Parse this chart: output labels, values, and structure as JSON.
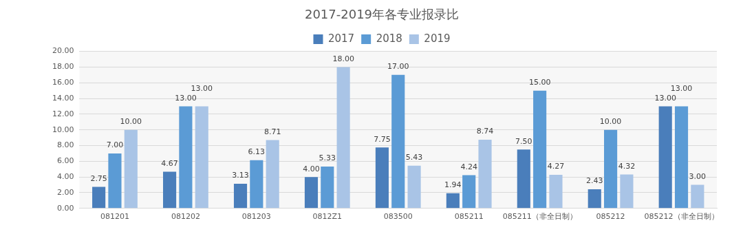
{
  "chart_data": {
    "type": "bar",
    "title": "2017-2019年各专业报录比",
    "categories": [
      "081201",
      "081202",
      "081203",
      "0812Z1",
      "083500",
      "085211",
      "085211（非全日制）",
      "085212",
      "085212（非全日制）"
    ],
    "series": [
      {
        "name": "2017",
        "color": "#4a7ebb",
        "values": [
          2.75,
          4.67,
          3.13,
          4.0,
          7.75,
          1.94,
          7.5,
          2.43,
          13.0
        ],
        "value_labels": [
          "2.75",
          "4.67",
          "3.13",
          "4.00",
          "7.75",
          "1.94",
          "7.50",
          "2.43",
          "13.00"
        ]
      },
      {
        "name": "2018",
        "color": "#5b9bd5",
        "values": [
          7.0,
          13.0,
          6.13,
          5.33,
          17.0,
          4.24,
          15.0,
          10.0,
          13.0
        ],
        "value_labels": [
          "7.00",
          "13.00",
          "6.13",
          "5.33",
          "17.00",
          "4.24",
          "15.00",
          "10.00",
          "13.00"
        ]
      },
      {
        "name": "2019",
        "color": "#a9c4e6",
        "values": [
          10.0,
          13.0,
          8.71,
          18.0,
          5.43,
          8.74,
          4.27,
          4.32,
          3.0
        ],
        "value_labels": [
          "10.00",
          "13.00",
          "8.71",
          "18.00",
          "5.43",
          "8.74",
          "4.27",
          "4.32",
          "3.00"
        ]
      }
    ],
    "ylim": [
      0,
      20
    ],
    "yticks": [
      {
        "value": 0,
        "label": "0.00"
      },
      {
        "value": 2,
        "label": "2.00"
      },
      {
        "value": 4,
        "label": "4.00"
      },
      {
        "value": 6,
        "label": "6.00"
      },
      {
        "value": 8,
        "label": "8.00"
      },
      {
        "value": 10,
        "label": "10.00"
      },
      {
        "value": 12,
        "label": "12.00"
      },
      {
        "value": 14,
        "label": "14.00"
      },
      {
        "value": 16,
        "label": "16.00"
      },
      {
        "value": 18,
        "label": "18.00"
      },
      {
        "value": 20,
        "label": "20.00"
      }
    ],
    "grid": "y",
    "legend": "top"
  }
}
